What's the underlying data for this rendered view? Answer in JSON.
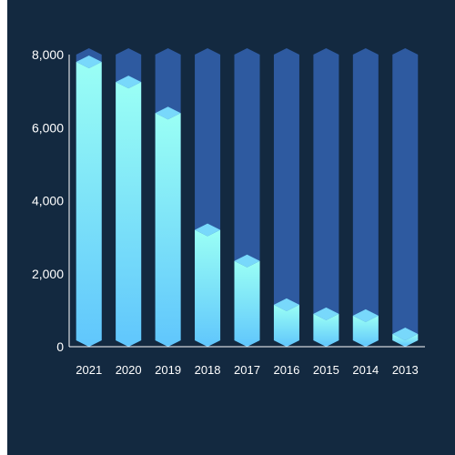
{
  "chart_data": {
    "type": "bar",
    "title": "",
    "xlabel": "",
    "ylabel": "",
    "categories": [
      "2021",
      "2020",
      "2019",
      "2018",
      "2017",
      "2016",
      "2015",
      "2014",
      "2013"
    ],
    "ylim": [
      0,
      8000
    ],
    "yticks": [
      0,
      2000,
      4000,
      6000,
      8000
    ],
    "ytick_labels": [
      "0",
      "2,000",
      "4,000",
      "6,000",
      "8,000"
    ],
    "series": [
      {
        "values": [
          7800,
          7250,
          6400,
          3200,
          2350,
          1150,
          900,
          850,
          350
        ]
      }
    ],
    "background_bars_value": 8000,
    "grid": false,
    "legend": "none",
    "colors": {
      "panel_background": "#132940",
      "track_bar": "#2e5aa0",
      "track_bar_top": "#2b5496",
      "bar_top_gradient": "#9afff5",
      "bar_bottom_gradient": "#60c6fc",
      "bar_cap": "#78d8fb",
      "axis": "#ffffff",
      "text": "#ffffff"
    }
  }
}
